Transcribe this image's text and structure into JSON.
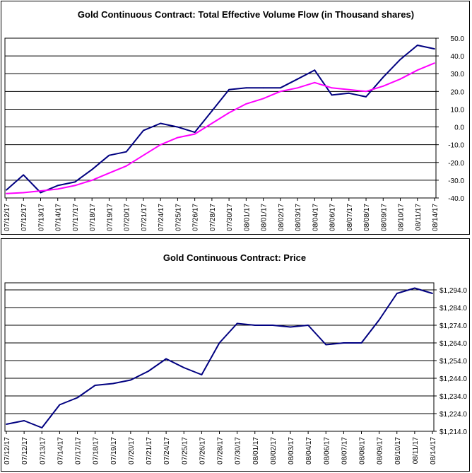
{
  "chart_data": [
    {
      "type": "line",
      "title": "Gold Continuous Contract: Total Effective Volume Flow (in Thousand shares)",
      "xlabel": "",
      "ylabel": "",
      "ylim": [
        -40,
        50
      ],
      "y_ticks": [
        "50.0",
        "40.0",
        "30.0",
        "20.0",
        "10.0",
        "0.0",
        "-10.0",
        "-20.0",
        "-30.0",
        "-40.0"
      ],
      "grid": true,
      "x": [
        "07/12/17",
        "07/12/17",
        "07/13/17",
        "07/14/17",
        "07/17/17",
        "07/18/17",
        "07/19/17",
        "07/20/17",
        "07/21/17",
        "07/24/17",
        "07/25/17",
        "07/26/17",
        "07/28/17",
        "07/30/17",
        "08/01/17",
        "08/01/17",
        "08/02/17",
        "08/03/17",
        "08/04/17",
        "08/06/17",
        "08/07/17",
        "08/08/17",
        "08/09/17",
        "08/10/17",
        "08/11/17",
        "08/14/17"
      ],
      "series": [
        {
          "color": "#000080",
          "values": [
            -35.5,
            -27,
            -37,
            -33,
            -31,
            -24,
            -16,
            -14,
            -2,
            2,
            0,
            -3,
            9,
            21,
            22,
            22,
            22,
            27,
            32,
            18,
            19,
            17,
            28,
            38,
            46,
            44
          ]
        },
        {
          "color": "#ff00ff",
          "values": [
            -37.5,
            -37,
            -36,
            -35,
            -33,
            -30,
            -26,
            -22,
            -16,
            -10,
            -6,
            -4,
            2,
            8,
            13,
            16,
            20,
            22,
            25,
            22,
            21,
            20,
            23,
            27,
            32,
            36
          ]
        }
      ]
    },
    {
      "type": "line",
      "title": "Gold Continuous Contract: Price",
      "xlabel": "",
      "ylabel": "",
      "ylim": [
        1214,
        1298
      ],
      "y_ticks": [
        "$1,294.0",
        "$1,284.0",
        "$1,274.0",
        "$1,264.0",
        "$1,254.0",
        "$1,244.0",
        "$1,234.0",
        "$1,224.0",
        "$1,214.0"
      ],
      "grid": true,
      "x": [
        "07/12/17",
        "07/12/17",
        "07/13/17",
        "07/14/17",
        "07/17/17",
        "07/18/17",
        "07/19/17",
        "07/20/17",
        "07/21/17",
        "07/24/17",
        "07/25/17",
        "07/26/17",
        "07/28/17",
        "07/30/17",
        "08/01/17",
        "08/02/17",
        "08/03/17",
        "08/04/17",
        "08/06/17",
        "08/07/17",
        "08/08/17",
        "08/09/17",
        "08/10/17",
        "08/11/17",
        "08/14/17"
      ],
      "series": [
        {
          "color": "#000080",
          "values": [
            1218,
            1220,
            1216,
            1229,
            1233,
            1240,
            1241,
            1243,
            1248,
            1255,
            1250,
            1246,
            1264,
            1275,
            1274,
            1274,
            1273,
            1274,
            1263,
            1264,
            1264,
            1277,
            1292,
            1295,
            1292
          ]
        }
      ]
    }
  ]
}
